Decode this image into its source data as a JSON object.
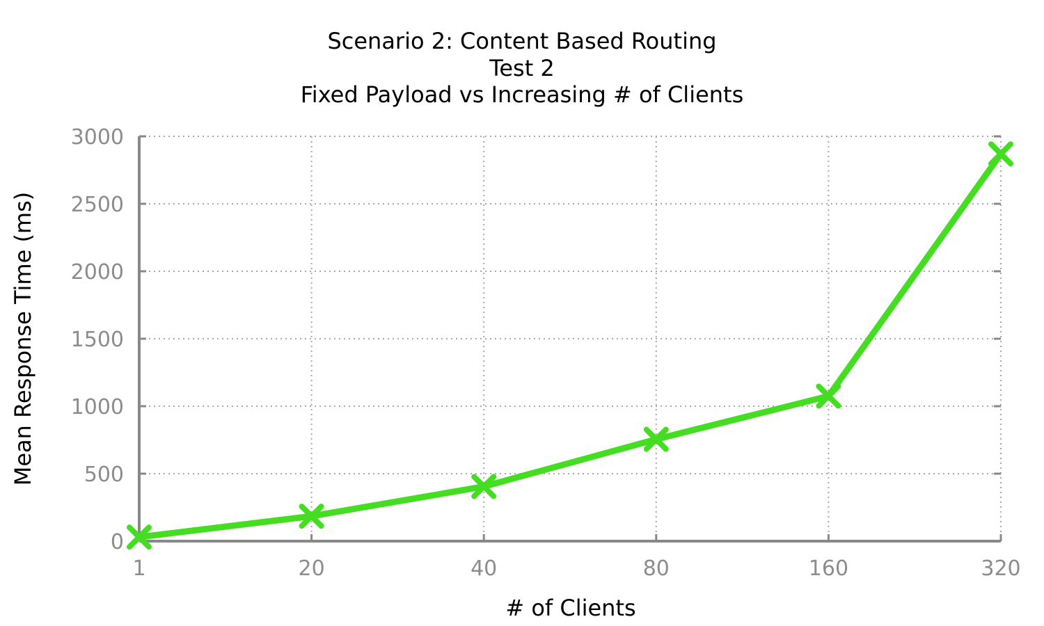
{
  "chart_data": {
    "type": "line",
    "title_lines": [
      "Scenario 2: Content Based Routing",
      "Test 2",
      "Fixed Payload vs Increasing # of Clients"
    ],
    "xlabel": "# of Clients",
    "ylabel": "Mean Response Time (ms)",
    "categories": [
      "1",
      "20",
      "40",
      "80",
      "160",
      "320"
    ],
    "series": [
      {
        "values": [
          30,
          185,
          405,
          755,
          1075,
          2870
        ]
      }
    ],
    "ylim": [
      0,
      3000
    ],
    "yticks": [
      "0",
      "500",
      "1000",
      "1500",
      "2000",
      "2500",
      "3000"
    ],
    "grid": true,
    "line_color": "#44dd22",
    "marker": "x"
  }
}
